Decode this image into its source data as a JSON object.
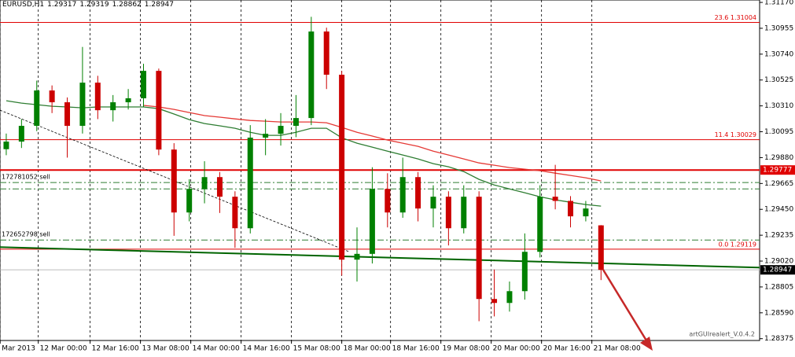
{
  "chart_data": {
    "type": "candlestick",
    "symbol": "EURUSD,H1",
    "ylim": [
      1.2836,
      1.3119
    ],
    "xlim": [
      -0.41,
      49.4
    ],
    "yticks": [
      {
        "value": 1.3117,
        "label": "1.31170"
      },
      1.30955,
      {
        "value": 1.3074,
        "label": "1.30740"
      },
      1.30525,
      {
        "value": 1.3031,
        "label": "1.30310"
      },
      1.30095,
      {
        "value": 1.2988,
        "label": "1.29880"
      },
      1.29665,
      {
        "value": 1.2945,
        "label": "1.29450"
      },
      1.29235,
      {
        "value": 1.2902,
        "label": "1.29020"
      },
      1.28805,
      {
        "value": 1.2859,
        "label": "1.28590"
      },
      1.28375
    ],
    "xticks": [
      {
        "value": -0.4,
        "label": "Mar 2013"
      },
      {
        "value": 2.1,
        "label": "12 Mar 00:00"
      },
      {
        "value": 5.5,
        "label": "12 Mar 16:00"
      },
      {
        "value": 8.8,
        "label": "13 Mar 08:00"
      },
      {
        "value": 12.1,
        "label": "14 Mar 00:00"
      },
      {
        "value": 15.4,
        "label": "14 Mar 16:00"
      },
      {
        "value": 18.7,
        "label": "15 Mar 08:00"
      },
      {
        "value": 22,
        "label": "18 Mar 00:00"
      },
      {
        "value": 25.2,
        "label": "18 Mar 16:00"
      },
      {
        "value": 28.5,
        "label": "19 Mar 08:00"
      },
      {
        "value": 31.8,
        "label": "20 Mar 00:00"
      },
      {
        "value": 35.1,
        "label": "20 Mar 16:00"
      },
      {
        "value": 38.4,
        "label": "21 Mar 08:00"
      }
    ],
    "up_color": "#008000",
    "down_color": "#cc0000",
    "open": [
      1.2995,
      1.30013,
      1.30144,
      1.30438,
      1.3034,
      1.30144,
      1.30503,
      1.30274,
      1.3034,
      1.30373,
      1.30601,
      1.29947,
      1.29424,
      1.2962,
      1.29718,
      1.29555,
      1.29293,
      1.30046,
      1.30078,
      1.30144,
      1.30209,
      1.30928,
      1.30569,
      1.29032,
      1.2908,
      1.2962,
      1.29424,
      1.29718,
      1.29457,
      1.29555,
      1.29293,
      1.29555,
      1.28705,
      1.28672,
      1.2877,
      1.29097,
      1.29555,
      1.2952,
      1.29392,
      1.29317
    ],
    "high": [
      1.3008,
      1.302,
      1.3052,
      1.3048,
      1.3038,
      1.308,
      1.3056,
      1.304,
      1.3045,
      1.3066,
      1.3062,
      1.3,
      1.297,
      1.2985,
      1.2976,
      1.296,
      1.3015,
      1.302,
      1.3025,
      1.304,
      1.3105,
      1.3096,
      1.306,
      1.293,
      1.298,
      1.2975,
      1.2988,
      1.2976,
      1.2965,
      1.296,
      1.2965,
      1.296,
      1.2895,
      1.2885,
      1.2925,
      1.2965,
      1.2982,
      1.2956,
      1.2952,
      1.29319
    ],
    "low": [
      1.299,
      1.2996,
      1.301,
      1.3025,
      1.2988,
      1.3008,
      1.302,
      1.3018,
      1.3028,
      1.303,
      1.299,
      1.2923,
      1.2935,
      1.295,
      1.2942,
      1.2913,
      1.2925,
      1.299,
      1.2998,
      1.3005,
      1.3015,
      1.3045,
      1.289,
      1.2885,
      1.29,
      1.293,
      1.2938,
      1.2935,
      1.293,
      1.2915,
      1.2925,
      1.2852,
      1.2856,
      1.286,
      1.287,
      1.2905,
      1.2945,
      1.293,
      1.2935,
      1.28862
    ],
    "close": [
      1.30013,
      1.30144,
      1.30438,
      1.3034,
      1.30144,
      1.30503,
      1.30274,
      1.3034,
      1.30373,
      1.30601,
      1.29947,
      1.29424,
      1.2962,
      1.29718,
      1.29555,
      1.29293,
      1.30046,
      1.30078,
      1.30144,
      1.30209,
      1.30928,
      1.30569,
      1.29032,
      1.2908,
      1.2962,
      1.29424,
      1.29718,
      1.29457,
      1.29555,
      1.29293,
      1.29555,
      1.28705,
      1.28672,
      1.2877,
      1.29097,
      1.29555,
      1.2952,
      1.29392,
      1.29457,
      1.28947
    ],
    "series": [
      {
        "color": "#2e7d32",
        "values": [
          1.30353,
          1.30333,
          1.3032,
          1.30307,
          1.30301,
          1.30294,
          1.30301,
          1.30301,
          1.30301,
          1.30301,
          1.30287,
          1.30242,
          1.30196,
          1.30163,
          1.30144,
          1.30124,
          1.30091,
          1.30065,
          1.30065,
          1.30091,
          1.30124,
          1.30124,
          1.30045,
          1.3,
          1.29967,
          1.29934,
          1.29902,
          1.29869,
          1.2983,
          1.29804,
          1.29764,
          1.29699,
          1.29653,
          1.2962,
          1.29588,
          1.29555,
          1.29529,
          1.29509,
          1.2949,
          1.29477
        ]
      },
      {
        "color": "#e53935",
        "values": [
          null,
          null,
          null,
          null,
          null,
          null,
          null,
          null,
          null,
          1.30314,
          1.30301,
          1.30281,
          1.30255,
          1.30229,
          1.30216,
          1.30202,
          1.30189,
          1.30183,
          1.30176,
          1.30176,
          1.30176,
          1.3017,
          1.30131,
          1.30091,
          1.30059,
          1.30026,
          1.3,
          1.29974,
          1.29934,
          1.29902,
          1.29869,
          1.29836,
          1.29817,
          1.29797,
          1.29784,
          1.29771,
          1.29751,
          1.29732,
          1.29712,
          1.29686
        ]
      }
    ],
    "trendlines": [
      {
        "color": "#006400",
        "x": [
          -0.41,
          49.4
        ],
        "y": [
          1.29136,
          1.28966
        ]
      },
      {
        "color": "#000000",
        "x": [
          -0.41,
          22.5
        ],
        "y": [
          1.30274,
          1.29097
        ]
      }
    ],
    "levels": [
      {
        "value": 1.31004,
        "label": "23.6 1.31004",
        "color": "#e00000"
      },
      {
        "value": 1.30029,
        "label": "11.4 1.30029",
        "color": "#e00000"
      },
      {
        "value": 1.29119,
        "label": "0.0 1.29119",
        "color": "#e00000"
      }
    ],
    "alert_level": {
      "value": 1.29777,
      "color": "#e00000"
    },
    "orders": [
      {
        "value": 1.29673,
        "label": "172781052 sell",
        "color": "#2e7d32"
      },
      {
        "value": 1.2962,
        "color": "#2e7d32"
      },
      {
        "value": 1.29195,
        "label": "172652798 sell",
        "color": "#2e7d32"
      }
    ],
    "watermark": "artGUIrealert_V.0.4.2"
  }
}
